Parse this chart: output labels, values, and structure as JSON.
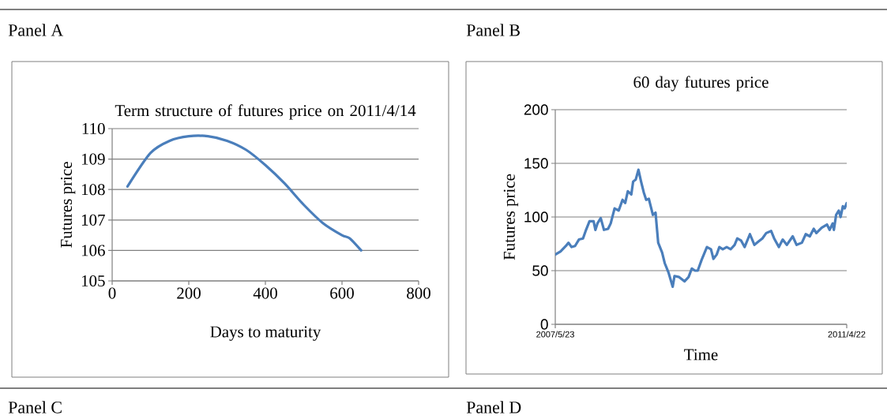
{
  "chart_data": [
    {
      "type": "line",
      "title": "Term structure of futures price on 2011/4/14",
      "xlabel": "Days to maturity",
      "ylabel": "Futures price",
      "annotations": [
        "Panel A",
        "Panel C"
      ],
      "x": [
        40,
        100,
        150,
        200,
        250,
        300,
        350,
        400,
        450,
        500,
        550,
        600,
        620,
        650
      ],
      "series": [
        {
          "color": "#4a7ebb",
          "values": [
            108.1,
            109.2,
            109.6,
            109.75,
            109.75,
            109.6,
            109.3,
            108.8,
            108.2,
            107.5,
            106.9,
            106.5,
            106.4,
            106.0
          ]
        }
      ],
      "xlim": [
        0,
        800
      ],
      "xticks": [
        0,
        200,
        400,
        600,
        800
      ],
      "ylim": [
        105,
        110
      ],
      "yticks": [
        105,
        106,
        107,
        108,
        109,
        110
      ],
      "grid": "y"
    },
    {
      "type": "line",
      "title": "60 day futures price",
      "xlabel": "Time",
      "ylabel": "Futures price",
      "annotations": [
        "Panel B",
        "Panel D"
      ],
      "x": [
        "2007-05-23",
        "2007-06-18",
        "2007-07-14",
        "2007-07-27",
        "2007-08-11",
        "2007-08-28",
        "2007-09-16",
        "2007-10-06",
        "2007-10-19",
        "2007-11-07",
        "2007-11-27",
        "2007-12-06",
        "2007-12-16",
        "2008-01-01",
        "2008-01-17",
        "2008-02-06",
        "2008-02-19",
        "2008-03-09",
        "2008-03-29",
        "2008-04-17",
        "2008-04-30",
        "2008-05-13",
        "2008-05-30",
        "2008-06-08",
        "2008-06-21",
        "2008-07-04",
        "2008-07-17",
        "2008-07-30",
        "2008-08-11",
        "2008-08-24",
        "2008-09-13",
        "2008-09-26",
        "2008-10-09",
        "2008-10-28",
        "2008-11-10",
        "2008-11-29",
        "2008-12-19",
        "2008-12-28",
        "2009-01-20",
        "2009-02-15",
        "2009-03-07",
        "2009-03-23",
        "2009-04-08",
        "2009-04-21",
        "2009-05-10",
        "2009-06-05",
        "2009-06-25",
        "2009-07-07",
        "2009-07-23",
        "2009-08-05",
        "2009-08-22",
        "2009-09-10",
        "2009-09-30",
        "2009-10-19",
        "2009-11-01",
        "2009-11-20",
        "2009-12-07",
        "2010-01-02",
        "2010-01-24",
        "2010-02-12",
        "2010-03-04",
        "2010-03-23",
        "2010-04-16",
        "2010-05-01",
        "2010-05-24",
        "2010-06-12",
        "2010-07-02",
        "2010-07-31",
        "2010-08-19",
        "2010-09-14",
        "2010-10-03",
        "2010-10-23",
        "2010-11-11",
        "2010-11-24",
        "2010-12-20",
        "2011-01-15",
        "2011-01-28",
        "2011-02-12",
        "2011-02-18",
        "2011-03-01",
        "2011-03-14",
        "2011-03-23",
        "2011-04-03",
        "2011-04-12",
        "2011-04-22"
      ],
      "series": [
        {
          "color": "#4a7ebb",
          "values": [
            65,
            68,
            73,
            76,
            72,
            73,
            79,
            80,
            87,
            96,
            96,
            88,
            94,
            99,
            88,
            89,
            94,
            108,
            106,
            116,
            113,
            124,
            121,
            133,
            135,
            144,
            133,
            123,
            116,
            117,
            102,
            104,
            76,
            67,
            57,
            48,
            35,
            45,
            44,
            40,
            44,
            52,
            50,
            50,
            60,
            72,
            70,
            61,
            65,
            72,
            70,
            72,
            70,
            74,
            80,
            78,
            72,
            84,
            74,
            77,
            80,
            85,
            87,
            80,
            72,
            79,
            74,
            82,
            74,
            76,
            84,
            82,
            89,
            85,
            90,
            93,
            88,
            94,
            88,
            102,
            106,
            100,
            110,
            108,
            113
          ]
        }
      ],
      "xlim": [
        "2007-05-23",
        "2011-04-22"
      ],
      "xticks": [
        {
          "value": "2007-05-23",
          "label": "2007/5/23"
        },
        {
          "value": "2011-04-22",
          "label": "2011/4/22"
        }
      ],
      "ylim": [
        0,
        200
      ],
      "yticks": [
        0,
        50,
        100,
        150,
        200
      ],
      "grid": "y"
    }
  ]
}
